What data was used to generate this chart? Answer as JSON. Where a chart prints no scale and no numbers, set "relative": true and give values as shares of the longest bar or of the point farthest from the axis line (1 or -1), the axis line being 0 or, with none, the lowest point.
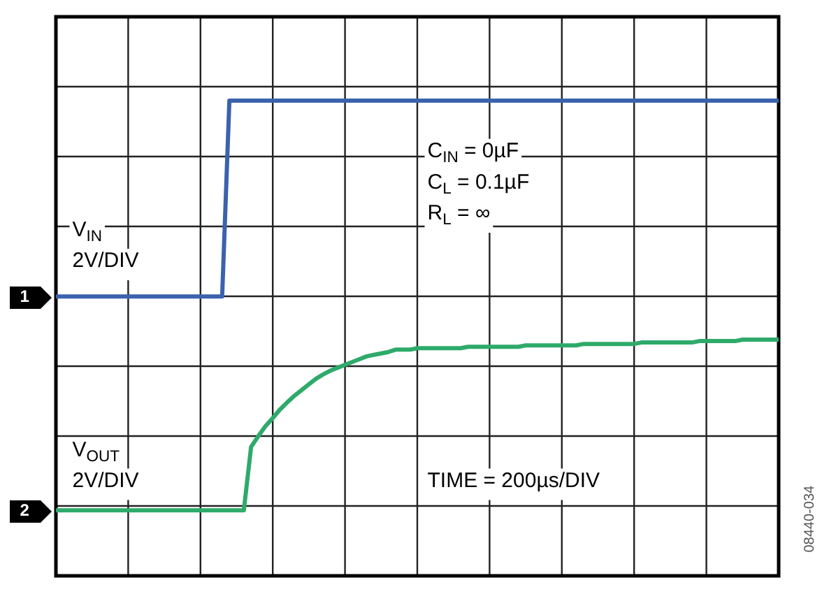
{
  "chart_data": {
    "type": "line",
    "relative": true,
    "grid": true,
    "legend": false,
    "marker": "none",
    "line_style": "solid",
    "categories": [
      null,
      null,
      null,
      null,
      null,
      null,
      null,
      null,
      null,
      null,
      null,
      null,
      null,
      null,
      null,
      null,
      null,
      null,
      null,
      null,
      null,
      null,
      null,
      null,
      null,
      null,
      null,
      null,
      null,
      null,
      null,
      null,
      null,
      null,
      null,
      null,
      null,
      null,
      null,
      null,
      null,
      null,
      null,
      null,
      null,
      null,
      null,
      null,
      null,
      null,
      null,
      null,
      null,
      null,
      null,
      null,
      null,
      null,
      null,
      null,
      null,
      null,
      null,
      null,
      null,
      null,
      null,
      null,
      null,
      null,
      null,
      null,
      null,
      null,
      null,
      null,
      null,
      null,
      null,
      null,
      null,
      null,
      null,
      null,
      null,
      null,
      null,
      null,
      null,
      null,
      null,
      null,
      null,
      null,
      null,
      null,
      null,
      null,
      null,
      null,
      null
    ],
    "series": [
      {
        "name": "V$_{IN}$",
        "color": "#3b62ad",
        "values": [
          0.588,
          0.588,
          0.588,
          0.588,
          0.588,
          0.588,
          0.588,
          0.588,
          0.588,
          0.588,
          0.588,
          0.588,
          0.588,
          0.588,
          0.588,
          0.588,
          0.588,
          0.588,
          0.588,
          0.588,
          0.588,
          0.588,
          0.588,
          0.588,
          1,
          1,
          1,
          1,
          1,
          1,
          1,
          1,
          1,
          1,
          1,
          1,
          1,
          1,
          1,
          1,
          1,
          1,
          1,
          1,
          1,
          1,
          1,
          1,
          1,
          1,
          1,
          1,
          1,
          1,
          1,
          1,
          1,
          1,
          1,
          1,
          1,
          1,
          1,
          1,
          1,
          1,
          1,
          1,
          1,
          1,
          1,
          1,
          1,
          1,
          1,
          1,
          1,
          1,
          1,
          1,
          1,
          1,
          1,
          1,
          1,
          1,
          1,
          1,
          1,
          1,
          1,
          1,
          1,
          1,
          1,
          1,
          1,
          1,
          1,
          1,
          1
        ]
      },
      {
        "name": "V$_{OUT}$",
        "color": "#2eaa6a",
        "values": [
          0.138,
          0.138,
          0.138,
          0.138,
          0.138,
          0.138,
          0.138,
          0.138,
          0.138,
          0.138,
          0.138,
          0.138,
          0.138,
          0.138,
          0.138,
          0.138,
          0.138,
          0.138,
          0.138,
          0.138,
          0.138,
          0.138,
          0.138,
          0.138,
          0.138,
          0.138,
          0.138,
          0.271,
          0.294,
          0.315,
          0.332,
          0.35,
          0.365,
          0.379,
          0.391,
          0.403,
          0.415,
          0.424,
          0.432,
          0.438,
          0.444,
          0.45,
          0.456,
          0.462,
          0.465,
          0.468,
          0.471,
          0.476,
          0.476,
          0.476,
          0.479,
          0.479,
          0.479,
          0.479,
          0.479,
          0.479,
          0.479,
          0.482,
          0.482,
          0.482,
          0.482,
          0.482,
          0.482,
          0.482,
          0.482,
          0.485,
          0.485,
          0.485,
          0.485,
          0.485,
          0.485,
          0.485,
          0.485,
          0.488,
          0.488,
          0.488,
          0.488,
          0.488,
          0.488,
          0.488,
          0.488,
          0.491,
          0.491,
          0.491,
          0.491,
          0.491,
          0.491,
          0.491,
          0.491,
          0.494,
          0.494,
          0.494,
          0.494,
          0.494,
          0.494,
          0.497,
          0.497,
          0.497,
          0.497,
          0.497,
          0.497
        ]
      }
    ],
    "annotations": [
      "1",
      "2",
      "2V/DIV",
      "2V/DIV",
      "C$_{IN}$ = 0µF",
      "C$_{L}$ = 0.1µF",
      "R$_{L}$ = ∞",
      "TIME = 200µs/DIV",
      "08440-034"
    ]
  }
}
